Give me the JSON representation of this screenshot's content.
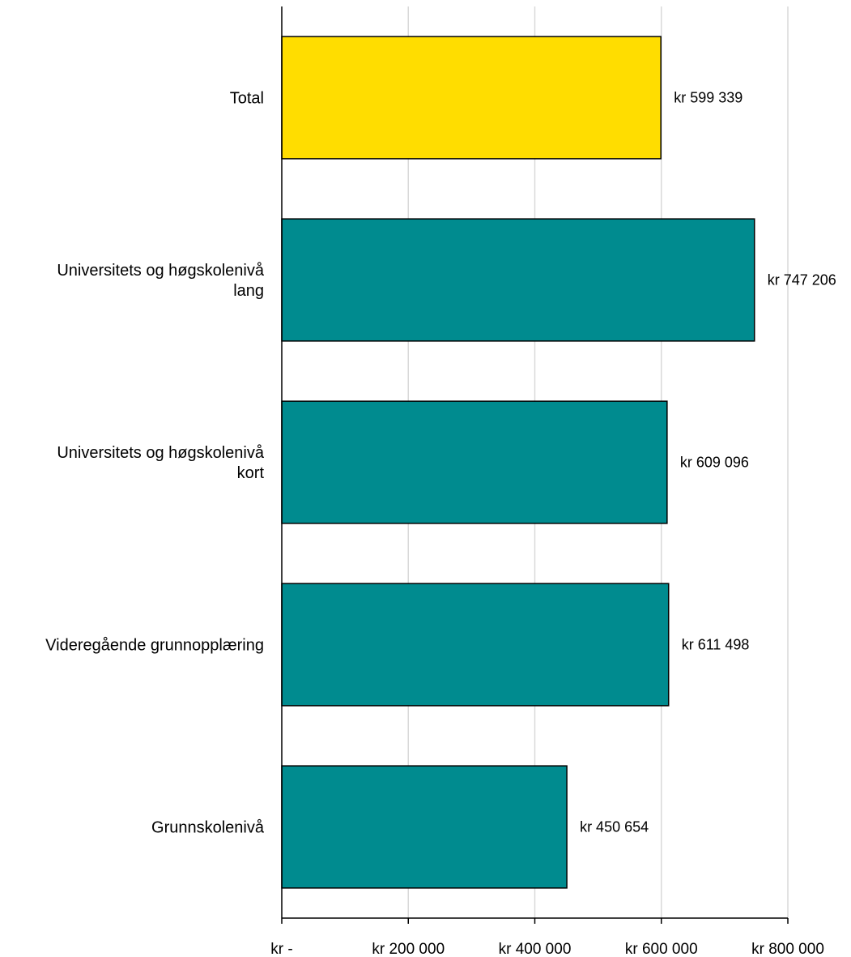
{
  "chart_data": {
    "type": "bar",
    "orientation": "horizontal",
    "title": "",
    "xlabel": "",
    "ylabel": "",
    "categories": [
      [
        "Total"
      ],
      [
        "Universitets og høgskolenivå",
        "lang"
      ],
      [
        "Universitets og høgskolenivå",
        "kort"
      ],
      [
        "Videregående grunnopplæring"
      ],
      [
        "Grunnskolenivå"
      ]
    ],
    "values": [
      599339,
      747206,
      609096,
      611498,
      450654
    ],
    "data_labels": [
      "kr 599 339",
      "kr 747 206",
      "kr 609 096",
      "kr 611 498",
      "kr 450 654"
    ],
    "xlim": [
      0,
      800000
    ],
    "x_ticks": [
      0,
      200000,
      400000,
      600000,
      800000
    ],
    "x_tick_labels": [
      "kr -",
      "kr 200 000",
      "kr 400 000",
      "kr 600 000",
      "kr 800 000"
    ],
    "grid": true,
    "legend": "none",
    "colors": {
      "highlight": "#FFDD00",
      "bar": "#008B8F",
      "bar_outline": "#000000",
      "grid": "#D9D9D9",
      "axis": "#000000"
    },
    "highlight_index": 0
  }
}
